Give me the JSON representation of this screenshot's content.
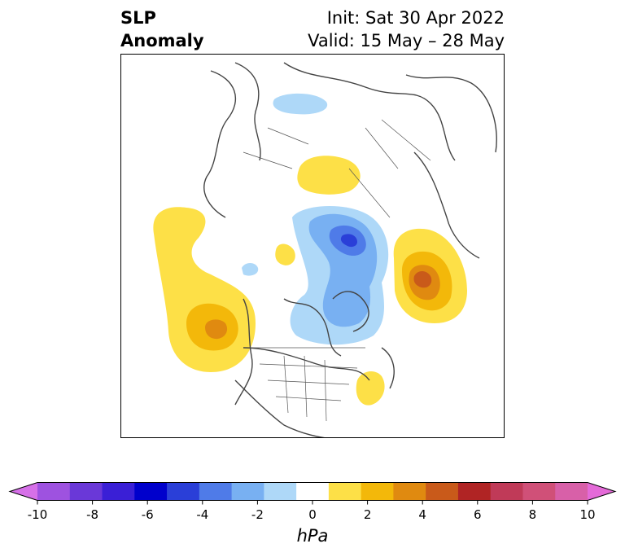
{
  "title": {
    "left_line1": "SLP",
    "left_line2": "Anomaly",
    "right_line1": "Init: Sat 30 Apr 2022",
    "right_line2": "Valid: 15 May – 28 May"
  },
  "colorbar": {
    "unit": "hPa",
    "ticks": [
      "-10",
      "-8",
      "-6",
      "-4",
      "-2",
      "0",
      "2",
      "4",
      "6",
      "8",
      "10"
    ],
    "colors": [
      "#d670e8",
      "#9e52e0",
      "#6a38d8",
      "#3a1fd6",
      "#0000cc",
      "#2a3fd8",
      "#4f7be8",
      "#78b0f2",
      "#aed8f8",
      "#ffffff",
      "#fde047",
      "#f3b80a",
      "#e08a10",
      "#c95a1a",
      "#b02424",
      "#c03a58",
      "#d05078",
      "#d860a8",
      "#e46ad8"
    ]
  }
}
